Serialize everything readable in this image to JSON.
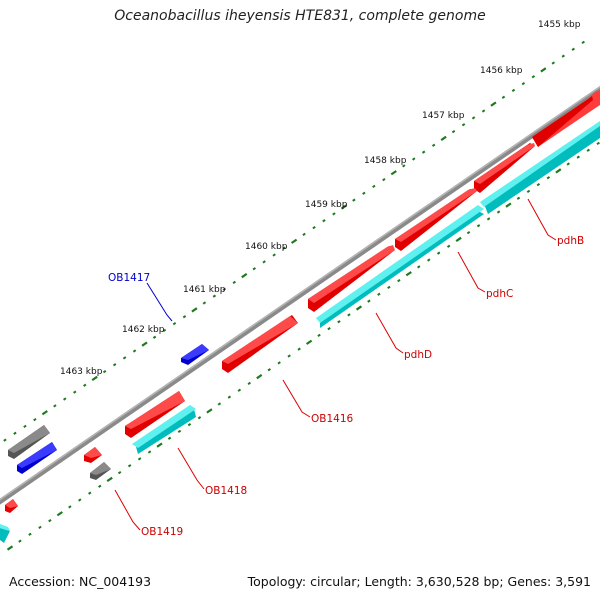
{
  "title": "Oceanobacillus iheyensis HTE831, complete genome",
  "footer": {
    "accession": "Accession: NC_004193",
    "summary": "Topology: circular; Length: 3,630,528 bp; Genes: 3,591"
  },
  "colors": {
    "backbone": "#7a7a7a",
    "tick": "#1d7a1d",
    "red_gene": "#ee1111",
    "cyan_gene": "#11cccc",
    "blue_gene": "#1111dd",
    "gray_gene": "#666666",
    "red_label": "#cc0000",
    "blue_label": "#0000cc"
  },
  "scale_ticks": [
    {
      "label": "1455 kbp"
    },
    {
      "label": "1456 kbp"
    },
    {
      "label": "1457 kbp"
    },
    {
      "label": "1458 kbp"
    },
    {
      "label": "1459 kbp"
    },
    {
      "label": "1460 kbp"
    },
    {
      "label": "1461 kbp"
    },
    {
      "label": "1462 kbp"
    },
    {
      "label": "1463 kbp"
    }
  ],
  "gene_labels": [
    {
      "text": "pdhB"
    },
    {
      "text": "pdhC"
    },
    {
      "text": "pdhD"
    },
    {
      "text": "OB1416"
    },
    {
      "text": "OB1417"
    },
    {
      "text": "OB1418"
    },
    {
      "text": "OB1419"
    }
  ]
}
